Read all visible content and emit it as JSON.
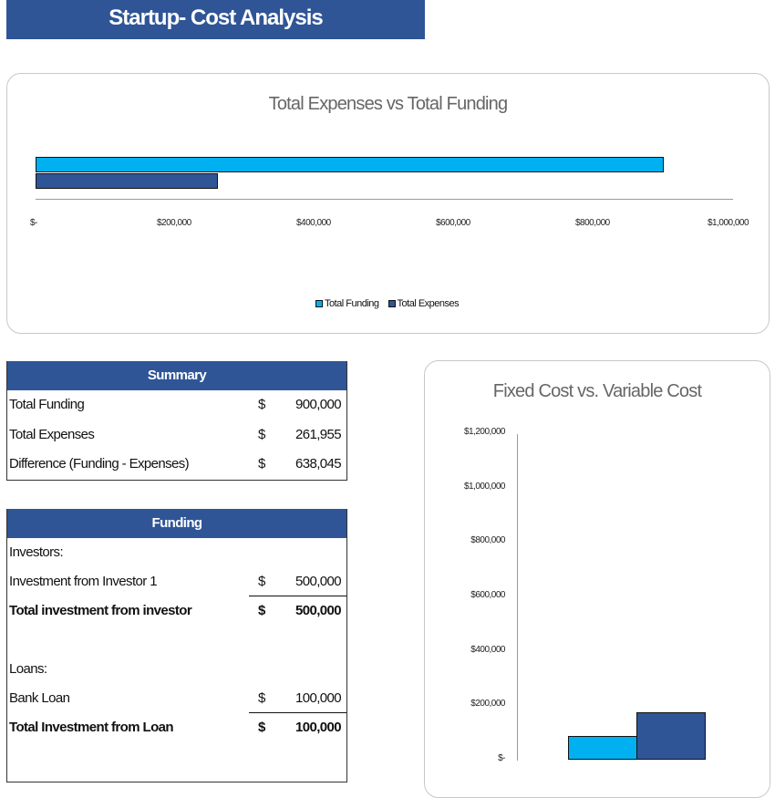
{
  "title": "Startup- Cost Analysis",
  "colors": {
    "header": "#2F5597",
    "funding": "#00B0F0",
    "expenses": "#2F5597",
    "fixed": "#00B0F0",
    "variable": "#2F5597"
  },
  "chart_data": [
    {
      "type": "bar",
      "orientation": "horizontal",
      "title": "Total Expenses vs Total Funding",
      "series": [
        {
          "name": "Total Funding",
          "values": [
            900000
          ]
        },
        {
          "name": "Total Expenses",
          "values": [
            261955
          ]
        }
      ],
      "xlim": [
        0,
        1000000
      ],
      "ticks": [
        "$-",
        "$200,000",
        "$400,000",
        "$600,000",
        "$800,000",
        "$1,000,000"
      ],
      "legend": "bottom",
      "grid": false
    },
    {
      "type": "bar",
      "title": "Fixed Cost vs. Variable Cost",
      "values": [
        87000,
        175000
      ],
      "ylim": [
        0,
        1200000
      ],
      "ticks": [
        "$-",
        "$200,000",
        "$400,000",
        "$600,000",
        "$800,000",
        "$1,000,000",
        "$1,200,000"
      ],
      "grid": false
    }
  ],
  "summary": {
    "header": "Summary",
    "rows": [
      {
        "label": "Total Funding",
        "cur": "$",
        "value": "900,000"
      },
      {
        "label": "Total Expenses",
        "cur": "$",
        "value": "261,955"
      },
      {
        "label": "Difference (Funding - Expenses)",
        "cur": "$",
        "value": "638,045"
      }
    ]
  },
  "funding": {
    "header": "Funding",
    "investors_label": "Investors:",
    "investor1": {
      "label": "Investment from Investor 1",
      "cur": "$",
      "value": "500,000"
    },
    "investor_total": {
      "label": "Total investment from investor",
      "cur": "$",
      "value": "500,000"
    },
    "loans_label": "Loans:",
    "bank": {
      "label": "Bank Loan",
      "cur": "$",
      "value": "100,000"
    },
    "loan_total": {
      "label": "Total Investment from Loan",
      "cur": "$",
      "value": "100,000"
    }
  }
}
